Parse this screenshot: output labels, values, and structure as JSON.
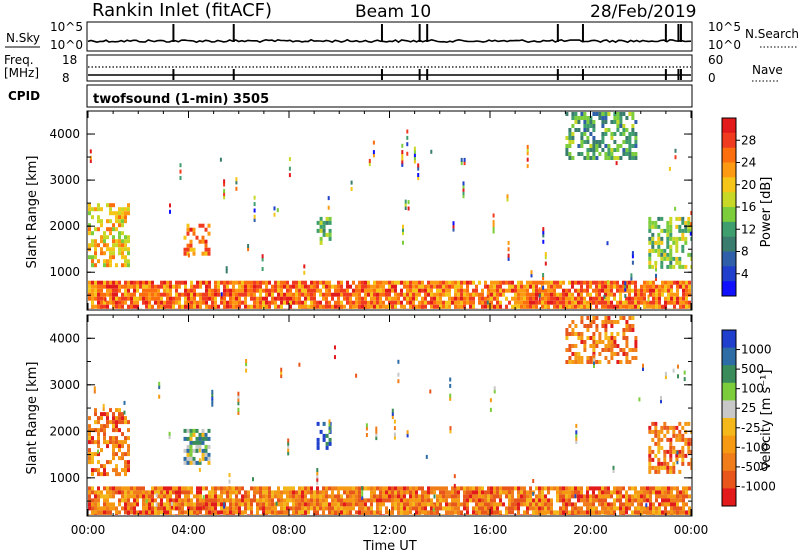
{
  "header": {
    "title": "Rankin Inlet (fitACF)",
    "beam": "Beam 10",
    "date": "28/Feb/2019"
  },
  "top_panels": {
    "nsky_label": "N.Sky",
    "nsky_ticks": [
      "10^5",
      "10^0"
    ],
    "nsearch_label": "N.Search",
    "nsearch_ticks": [
      "10^5",
      "10^0"
    ],
    "freq_label": "Freq.",
    "freq_unit": "[MHz]",
    "freq_ticks": [
      "18",
      "8"
    ],
    "nave_label": "Nave",
    "nave_ticks": [
      "60",
      "0"
    ],
    "cpid_label": "CPID",
    "cpid_text": "twofsound (1-min) 3505"
  },
  "colorbars": {
    "power": {
      "label": "Power [dB]",
      "ticks": [
        "28",
        "24",
        "20",
        "16",
        "12",
        "8",
        "4"
      ],
      "colors": [
        "#e31a1c",
        "#f03b20",
        "#fd6f0e",
        "#fd9a12",
        "#f5c518",
        "#c8d826",
        "#7ccd3b",
        "#3f9e6d",
        "#3a7d6e",
        "#2e5fa8",
        "#1f3fcc",
        "#1010ff"
      ]
    },
    "velocity": {
      "label": "Velocity  [m s⁻¹]",
      "ticks": [
        "1000",
        "500",
        "100",
        "25",
        "-25",
        "-100",
        "-500",
        "-1000"
      ],
      "colors": [
        "#1f3fcc",
        "#2e6ca6",
        "#3a8c5a",
        "#7ccd3b",
        "#c8c8c8",
        "#f5b81a",
        "#f59a12",
        "#f07d1a",
        "#e9561b",
        "#e31a1c"
      ]
    }
  },
  "axes": {
    "ylabel": "Slant Range [km]",
    "xlabel": "Time UT",
    "y_ticks": [
      "4000",
      "3000",
      "2000",
      "1000"
    ],
    "x_ticks": [
      "00:00",
      "04:00",
      "08:00",
      "12:00",
      "16:00",
      "20:00",
      "00:00"
    ]
  },
  "chart_data": [
    {
      "type": "heatmap",
      "name": "Power [dB]",
      "xlabel": "Time UT",
      "ylabel": "Slant Range [km]",
      "x_range_hours": [
        0,
        24
      ],
      "ylim": [
        180,
        4500
      ],
      "cbar_ticks": [
        4,
        8,
        12,
        16,
        20,
        24,
        28
      ],
      "echo_regions": [
        {
          "t": [
            0.0,
            1.6
          ],
          "r": [
            1100,
            2500
          ],
          "dB": 20
        },
        {
          "t": [
            3.8,
            4.8
          ],
          "r": [
            1350,
            2050
          ],
          "dB": 24
        },
        {
          "t": [
            0.0,
            24.0
          ],
          "r": [
            180,
            800
          ],
          "dB": 24
        },
        {
          "t": [
            9.1,
            9.6
          ],
          "r": [
            1600,
            2200
          ],
          "dB": 16
        },
        {
          "t": [
            22.3,
            24.0
          ],
          "r": [
            1100,
            2200
          ],
          "dB": 16
        },
        {
          "t": [
            19.0,
            21.8
          ],
          "r": [
            3500,
            4500
          ],
          "dB": 12
        }
      ]
    },
    {
      "type": "heatmap",
      "name": "Velocity [m s-1]",
      "xlabel": "Time UT",
      "ylabel": "Slant Range [km]",
      "x_range_hours": [
        0,
        24
      ],
      "ylim": [
        180,
        4500
      ],
      "cbar_ticks": [
        1000,
        500,
        100,
        25,
        -25,
        -100,
        -500,
        -1000
      ],
      "echo_regions": [
        {
          "t": [
            0.0,
            1.6
          ],
          "r": [
            1100,
            2500
          ],
          "v": -100
        },
        {
          "t": [
            3.8,
            4.8
          ],
          "r": [
            1350,
            2050
          ],
          "v": 100
        },
        {
          "t": [
            0.0,
            24.0
          ],
          "r": [
            180,
            800
          ],
          "v": -100
        },
        {
          "t": [
            9.1,
            9.6
          ],
          "r": [
            1600,
            2200
          ],
          "v": 500
        },
        {
          "t": [
            22.3,
            24.0
          ],
          "r": [
            1100,
            2200
          ],
          "v": -100
        },
        {
          "t": [
            19.0,
            21.8
          ],
          "r": [
            3500,
            4500
          ],
          "v": -100
        }
      ]
    }
  ]
}
